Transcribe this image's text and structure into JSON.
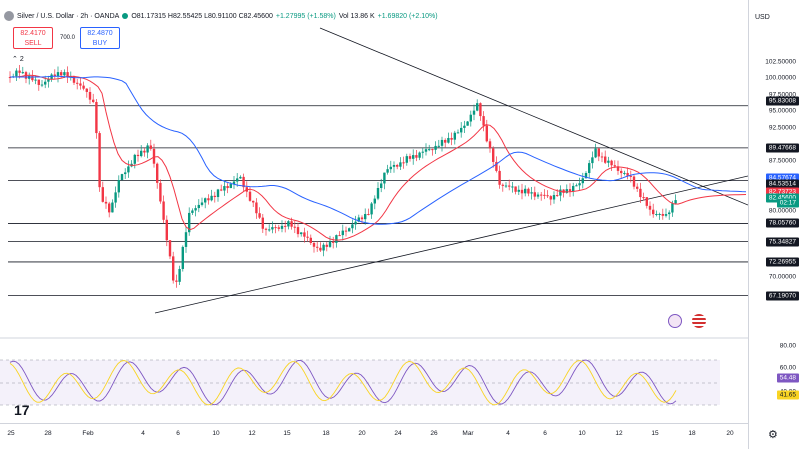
{
  "header": {
    "title": "Silver / U.S. Dollar · 2h · OANDA",
    "ohlc": "O81.17315 H82.55425 L80.91100 C82.45600",
    "change": "+1.27995 (+1.58%)",
    "volume": "Vol 13.86 K",
    "vol_change": "+1.69820 (+2.10%)"
  },
  "trade": {
    "sell_price": "82.4170",
    "sell_label": "SELL",
    "spread": "700.0",
    "buy_price": "82.4870",
    "buy_label": "BUY"
  },
  "indicators_toggle": "2",
  "price_axis": {
    "currency": "USD",
    "ticks": [
      "102.50000",
      "100.00000",
      "97.50000",
      "95.00000",
      "92.50000",
      "87.50000",
      "80.00000",
      "70.00000"
    ],
    "hl_levels": [
      {
        "text": "95.83008",
        "color": "#131722",
        "fg": "#ffffff"
      },
      {
        "text": "89.47668",
        "color": "#131722",
        "fg": "#ffffff"
      },
      {
        "text": "84.57674",
        "color": "#2962ff",
        "fg": "#ffffff"
      },
      {
        "text": "84.53514",
        "color": "#131722",
        "fg": "#ffffff"
      },
      {
        "text": "82.73723",
        "color": "#f23645",
        "fg": "#ffffff"
      },
      {
        "text": "82.45600",
        "color": "#089981",
        "fg": "#ffffff"
      },
      {
        "text": "02:17",
        "color": "#089981",
        "fg": "#ffffff"
      },
      {
        "text": "78.05760",
        "color": "#131722",
        "fg": "#ffffff"
      },
      {
        "text": "75.34827",
        "color": "#131722",
        "fg": "#ffffff"
      },
      {
        "text": "72.26955",
        "color": "#131722",
        "fg": "#ffffff"
      },
      {
        "text": "67.19070",
        "color": "#131722",
        "fg": "#ffffff"
      }
    ],
    "rsi_ticks": [
      "80.00",
      "60.00",
      "40.00"
    ],
    "rsi_hl": [
      {
        "text": "54.48",
        "color": "#7e57c2",
        "fg": "#ffffff"
      },
      {
        "text": "41.65",
        "color": "#f9d423",
        "fg": "#131722"
      }
    ]
  },
  "time_axis": [
    "25",
    "28",
    "Feb",
    "4",
    "6",
    "10",
    "12",
    "15",
    "18",
    "20",
    "24",
    "26",
    "Mar",
    "4",
    "6",
    "10",
    "12",
    "15",
    "18",
    "20"
  ],
  "colors": {
    "up": "#089981",
    "down": "#f23645",
    "ema_fast": "#f23645",
    "ema_slow": "#2962ff",
    "rsi": "#7e57c2",
    "rsi_ma": "#f9d423"
  }
}
